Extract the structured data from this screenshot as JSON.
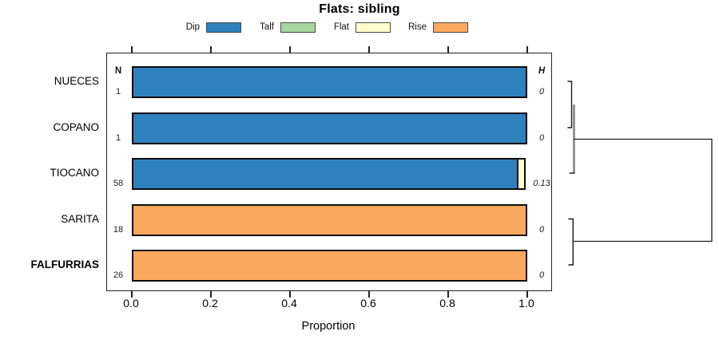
{
  "title": "Flats: sibling",
  "legend": {
    "items": [
      {
        "label": "Dip",
        "color": "#2E81BC"
      },
      {
        "label": "Talf",
        "color": "#A7D79F"
      },
      {
        "label": "Flat",
        "color": "#FFFFCC"
      },
      {
        "label": "Rise",
        "color": "#FBA85F"
      }
    ]
  },
  "columns": {
    "n_header": "N",
    "h_header": "H"
  },
  "x_axis": {
    "label": "Proportion",
    "ticks": [
      "0.0",
      "0.2",
      "0.4",
      "0.6",
      "0.8",
      "1.0"
    ]
  },
  "chart_data": {
    "type": "bar",
    "orientation": "horizontal",
    "stacked": true,
    "title": "Flats: sibling",
    "xlabel": "Proportion",
    "xlim": [
      0,
      1
    ],
    "grid": false,
    "legend_position": "top",
    "categories": [
      "NUECES",
      "COPANO",
      "TIOCANO",
      "SARITA",
      "FALFURRIAS"
    ],
    "series": [
      {
        "name": "Dip",
        "color": "#2E81BC",
        "values": [
          1,
          1,
          0.978,
          0,
          0
        ]
      },
      {
        "name": "Talf",
        "color": "#A7D79F",
        "values": [
          0,
          0,
          0,
          0,
          0
        ]
      },
      {
        "name": "Flat",
        "color": "#FFFFCC",
        "values": [
          0,
          0,
          0.022,
          0,
          0
        ]
      },
      {
        "name": "Rise",
        "color": "#FBA85F",
        "values": [
          0,
          0,
          0,
          1,
          1
        ]
      }
    ],
    "n_values": [
      1,
      1,
      58,
      18,
      26
    ],
    "h_values": [
      "0",
      "0",
      "0.13",
      "0",
      "0"
    ],
    "dendrogram": {
      "side": "right",
      "merges": [
        {
          "members": [
            "NUECES",
            "COPANO"
          ],
          "height": 0
        },
        {
          "members": [
            "NUECES+COPANO",
            "TIOCANO"
          ],
          "height": 0.13
        },
        {
          "members": [
            "SARITA",
            "FALFURRIAS"
          ],
          "height": 0
        },
        {
          "members": [
            "NUECES+COPANO+TIOCANO",
            "SARITA+FALFURRIAS"
          ],
          "height": 1
        }
      ]
    }
  },
  "rows": [
    {
      "label": "NUECES",
      "bold": false,
      "n": "1",
      "h": "0",
      "segments": [
        {
          "name": "Dip",
          "color": "#2E81BC",
          "fraction": 1
        }
      ]
    },
    {
      "label": "COPANO",
      "bold": false,
      "n": "1",
      "h": "0",
      "segments": [
        {
          "name": "Dip",
          "color": "#2E81BC",
          "fraction": 1
        }
      ]
    },
    {
      "label": "TIOCANO",
      "bold": false,
      "n": "58",
      "h": "0.13",
      "segments": [
        {
          "name": "Dip",
          "color": "#2E81BC",
          "fraction": 0.978
        },
        {
          "name": "Flat",
          "color": "#FFFFCC",
          "fraction": 0.022
        }
      ]
    },
    {
      "label": "SARITA",
      "bold": false,
      "n": "18",
      "h": "0",
      "segments": [
        {
          "name": "Rise",
          "color": "#FBA85F",
          "fraction": 1
        }
      ]
    },
    {
      "label": "FALFURRIAS",
      "bold": true,
      "n": "26",
      "h": "0",
      "segments": [
        {
          "name": "Rise",
          "color": "#FBA85F",
          "fraction": 1
        }
      ]
    }
  ]
}
